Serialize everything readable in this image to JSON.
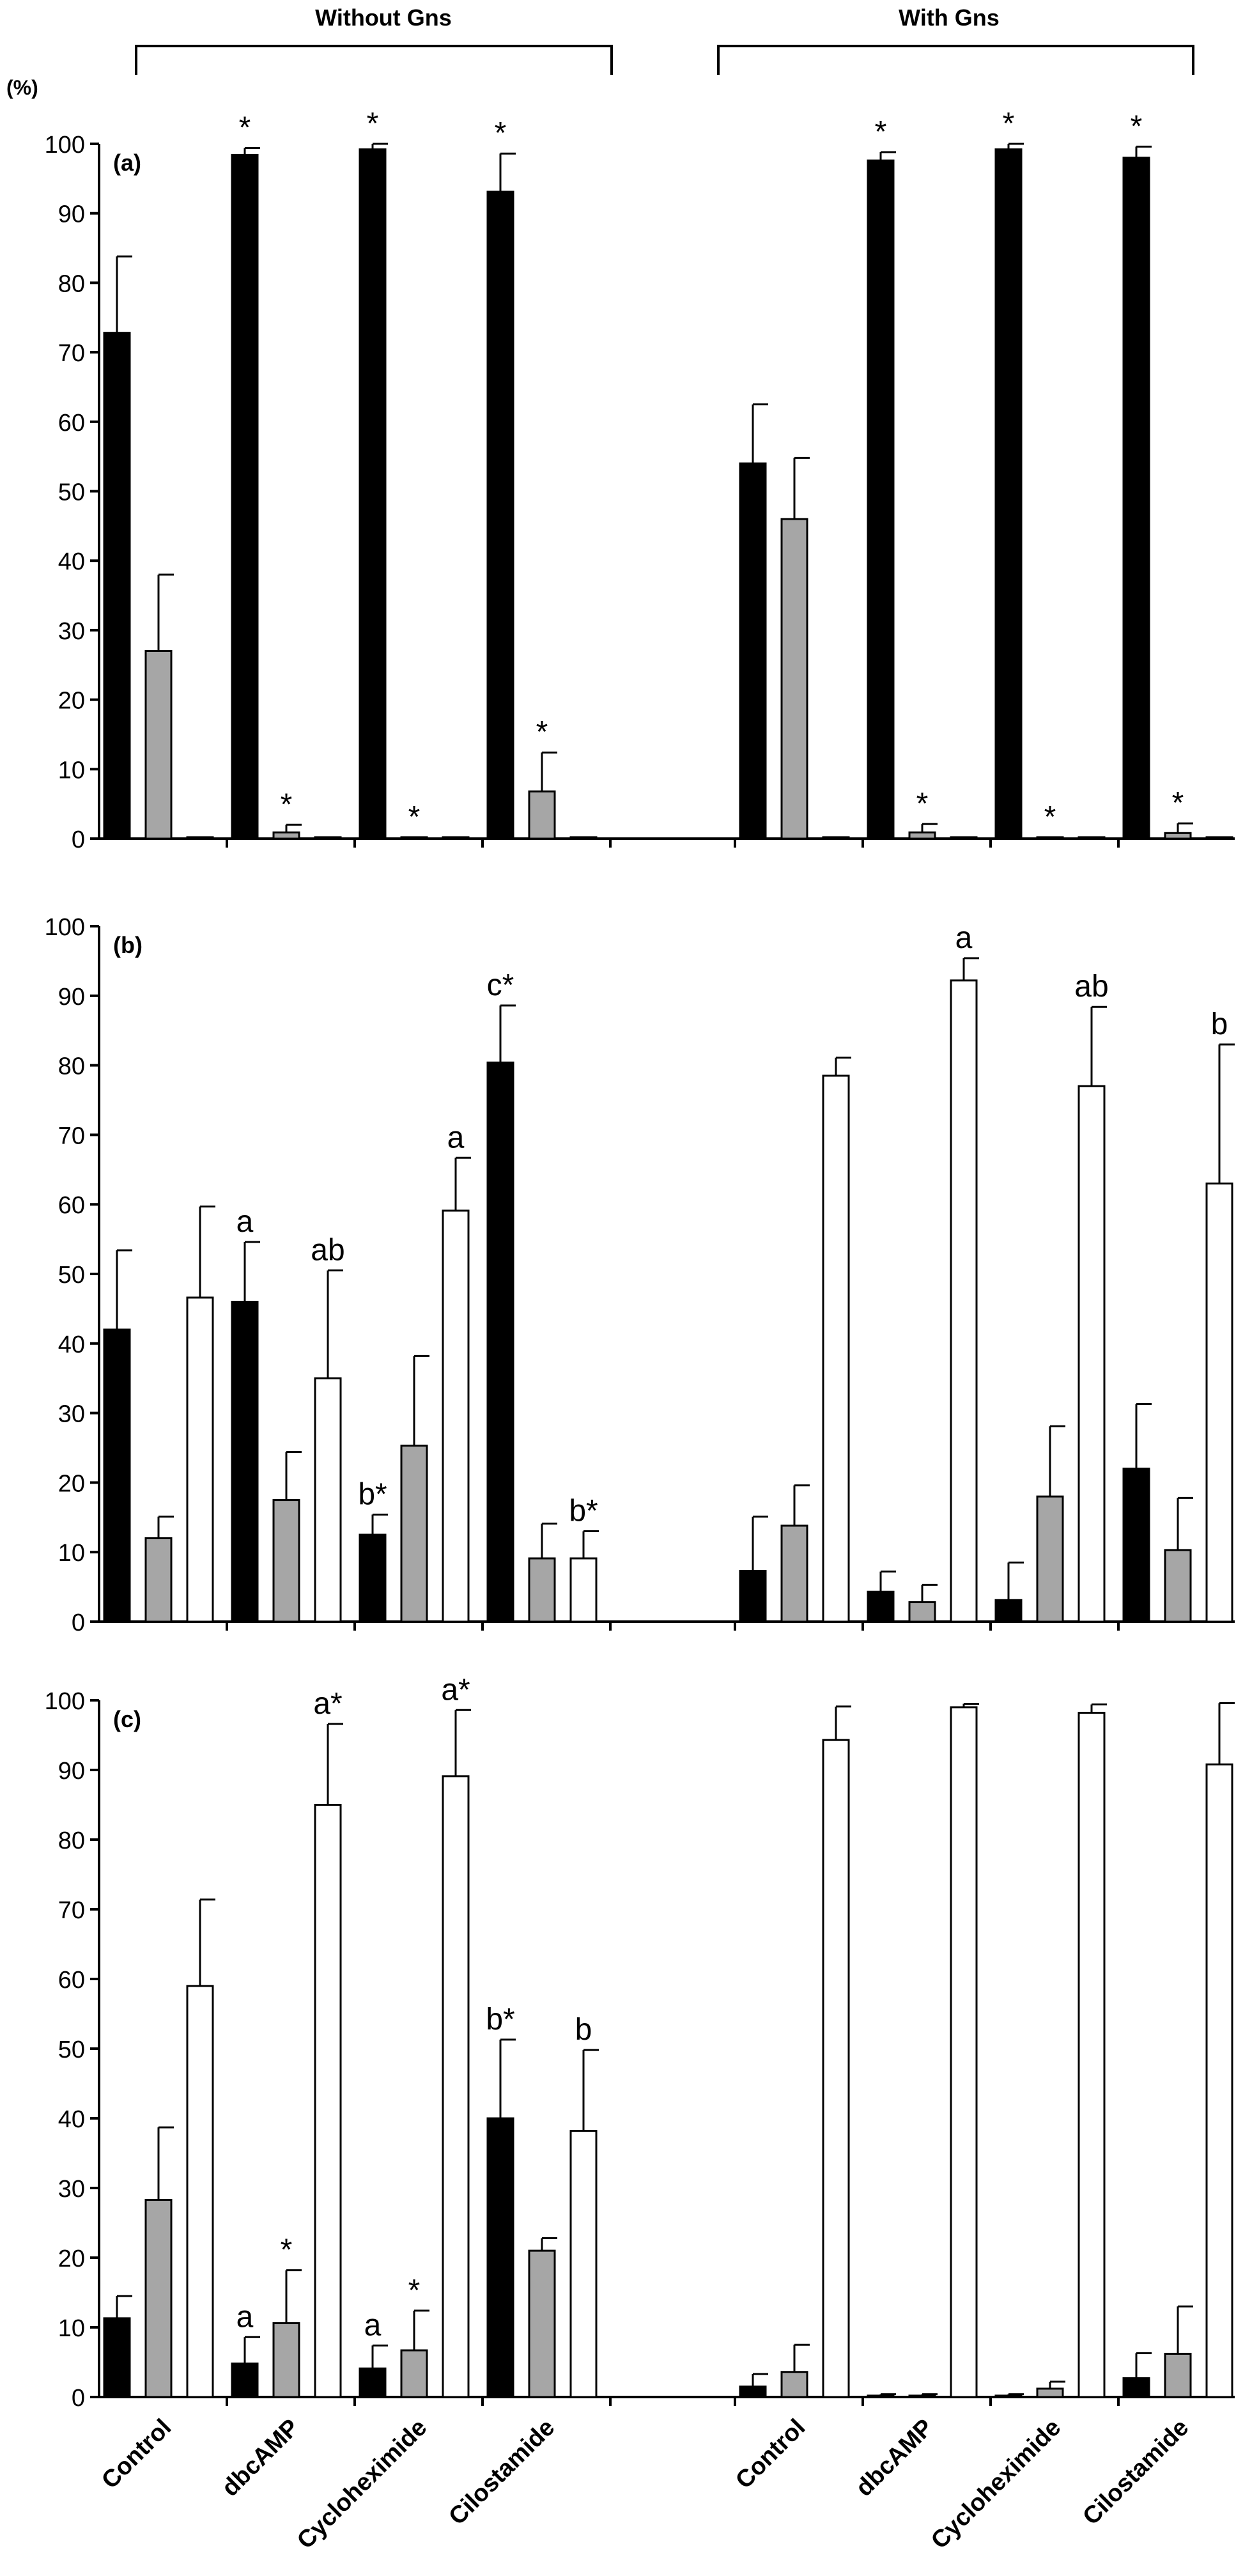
{
  "figure": {
    "y_unit": "(%)",
    "group_labels": [
      "Without Gns",
      "With Gns"
    ],
    "categories": [
      "Control",
      "dbcAMP",
      "Cycloheximide",
      "Cilostamide",
      "Control",
      "dbcAMP",
      "Cycloheximide",
      "Cilostamide"
    ],
    "colors": {
      "black": "#000000",
      "gray": "#a6a6a6",
      "white": "#ffffff",
      "axis": "#000000"
    }
  },
  "chart_data": [
    {
      "type": "bar",
      "panel_label": "(a)",
      "ylim": [
        0,
        100
      ],
      "yticks": [
        0,
        10,
        20,
        30,
        40,
        50,
        60,
        70,
        80,
        90,
        100
      ],
      "grid": false,
      "categories": [
        "Control",
        "dbcAMP",
        "Cycloheximide",
        "Cilostamide",
        "Control",
        "dbcAMP",
        "Cycloheximide",
        "Cilostamide"
      ],
      "series": [
        {
          "color": "#000000",
          "values": [
            72.8,
            98.4,
            99.2,
            93.1,
            54.0,
            97.6,
            99.2,
            98.0
          ],
          "errors": [
            11.0,
            1.0,
            0.8,
            5.5,
            8.5,
            1.2,
            0.8,
            1.6
          ]
        },
        {
          "color": "#a6a6a6",
          "values": [
            27.0,
            0.9,
            0.2,
            6.8,
            46.0,
            0.9,
            0.2,
            0.8
          ],
          "errors": [
            11.0,
            1.1,
            0.0,
            5.6,
            8.8,
            1.2,
            0.0,
            1.4
          ]
        },
        {
          "color": "#ffffff",
          "values": [
            0.2,
            0.2,
            0.2,
            0.2,
            0.2,
            0.2,
            0.2,
            0.2
          ],
          "errors": [
            0,
            0,
            0,
            0,
            0,
            0,
            0,
            0
          ]
        }
      ],
      "annotations": [
        {
          "category": 1,
          "series": 0,
          "text": "*"
        },
        {
          "category": 1,
          "series": 1,
          "text": "*"
        },
        {
          "category": 2,
          "series": 0,
          "text": "*"
        },
        {
          "category": 2,
          "series": 1,
          "text": "*"
        },
        {
          "category": 3,
          "series": 0,
          "text": "*"
        },
        {
          "category": 3,
          "series": 1,
          "text": "*"
        },
        {
          "category": 5,
          "series": 0,
          "text": "*"
        },
        {
          "category": 5,
          "series": 1,
          "text": "*"
        },
        {
          "category": 6,
          "series": 0,
          "text": "*"
        },
        {
          "category": 6,
          "series": 1,
          "text": "*"
        },
        {
          "category": 7,
          "series": 0,
          "text": "*"
        },
        {
          "category": 7,
          "series": 1,
          "text": "*"
        }
      ]
    },
    {
      "type": "bar",
      "panel_label": "(b)",
      "ylim": [
        0,
        100
      ],
      "yticks": [
        0,
        10,
        20,
        30,
        40,
        50,
        60,
        70,
        80,
        90,
        100
      ],
      "grid": false,
      "categories": [
        "Control",
        "dbcAMP",
        "Cycloheximide",
        "Cilostamide",
        "Control",
        "dbcAMP",
        "Cycloheximide",
        "Cilostamide"
      ],
      "series": [
        {
          "color": "#000000",
          "values": [
            42.0,
            46.0,
            12.5,
            80.4,
            7.3,
            4.3,
            3.1,
            22.0
          ],
          "errors": [
            11.4,
            8.6,
            2.9,
            8.2,
            7.8,
            2.9,
            5.4,
            9.3
          ]
        },
        {
          "color": "#a6a6a6",
          "values": [
            12.0,
            17.5,
            25.3,
            9.1,
            13.8,
            2.8,
            18.0,
            10.3
          ],
          "errors": [
            3.1,
            6.9,
            12.9,
            5.0,
            5.8,
            2.5,
            10.1,
            7.5
          ]
        },
        {
          "color": "#ffffff",
          "values": [
            46.6,
            35.0,
            59.1,
            9.1,
            78.5,
            92.2,
            77.0,
            63.0
          ],
          "errors": [
            13.1,
            15.5,
            7.6,
            3.9,
            2.6,
            3.2,
            11.4,
            20.0
          ]
        }
      ],
      "annotations": [
        {
          "category": 1,
          "series": 0,
          "text": "a"
        },
        {
          "category": 1,
          "series": 2,
          "text": "ab"
        },
        {
          "category": 2,
          "series": 0,
          "text": "b*"
        },
        {
          "category": 2,
          "series": 2,
          "text": "a"
        },
        {
          "category": 3,
          "series": 0,
          "text": "c*"
        },
        {
          "category": 3,
          "series": 2,
          "text": "b*"
        },
        {
          "category": 5,
          "series": 2,
          "text": "a"
        },
        {
          "category": 6,
          "series": 2,
          "text": "ab"
        },
        {
          "category": 7,
          "series": 2,
          "text": "b"
        }
      ]
    },
    {
      "type": "bar",
      "panel_label": "(c)",
      "ylim": [
        0,
        100
      ],
      "yticks": [
        0,
        10,
        20,
        30,
        40,
        50,
        60,
        70,
        80,
        90,
        100
      ],
      "grid": false,
      "categories": [
        "Control",
        "dbcAMP",
        "Cycloheximide",
        "Cilostamide",
        "Control",
        "dbcAMP",
        "Cycloheximide",
        "Cilostamide"
      ],
      "series": [
        {
          "color": "#000000",
          "values": [
            11.3,
            4.8,
            4.1,
            40.0,
            1.5,
            0.2,
            0.2,
            2.7
          ],
          "errors": [
            3.2,
            3.8,
            3.3,
            11.3,
            1.8,
            0.2,
            0.2,
            3.6
          ]
        },
        {
          "color": "#a6a6a6",
          "values": [
            28.3,
            10.6,
            6.7,
            21.0,
            3.6,
            0.2,
            1.2,
            6.2
          ],
          "errors": [
            10.4,
            7.6,
            5.7,
            1.8,
            3.9,
            0.2,
            1.0,
            6.8
          ]
        },
        {
          "color": "#ffffff",
          "values": [
            59.0,
            85.0,
            89.1,
            38.2,
            94.3,
            99.0,
            98.2,
            90.8
          ],
          "errors": [
            12.4,
            11.6,
            9.5,
            11.6,
            4.8,
            0.5,
            1.2,
            8.8
          ]
        }
      ],
      "annotations": [
        {
          "category": 1,
          "series": 0,
          "text": "a"
        },
        {
          "category": 1,
          "series": 1,
          "text": "*"
        },
        {
          "category": 1,
          "series": 2,
          "text": "a*"
        },
        {
          "category": 2,
          "series": 0,
          "text": "a"
        },
        {
          "category": 2,
          "series": 1,
          "text": "*"
        },
        {
          "category": 2,
          "series": 2,
          "text": "a*"
        },
        {
          "category": 3,
          "series": 0,
          "text": "b*"
        },
        {
          "category": 3,
          "series": 2,
          "text": "b"
        }
      ]
    }
  ]
}
